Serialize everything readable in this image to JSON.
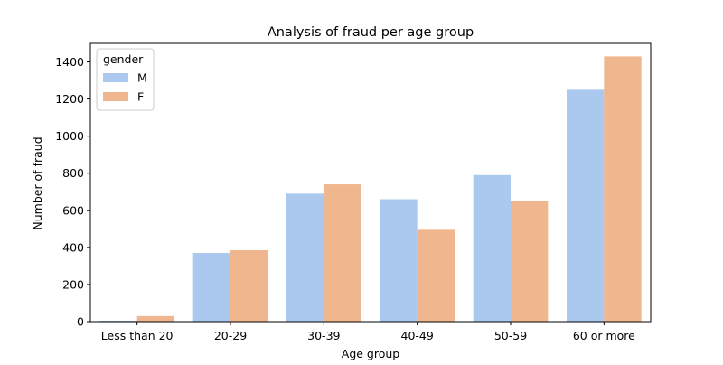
{
  "chart_data": {
    "type": "bar",
    "title": "Analysis of fraud per age group",
    "xlabel": "Age group",
    "ylabel": "Number of fraud",
    "categories": [
      "Less than 20",
      "20-29",
      "30-39",
      "40-49",
      "50-59",
      "60 or more"
    ],
    "series": [
      {
        "name": "M",
        "color": "#abc9ee",
        "values": [
          5,
          370,
          690,
          660,
          790,
          1250
        ]
      },
      {
        "name": "F",
        "color": "#f0b78e",
        "values": [
          30,
          385,
          740,
          495,
          650,
          1430
        ]
      }
    ],
    "ylim": [
      0,
      1500
    ],
    "yticks": [
      0,
      200,
      400,
      600,
      800,
      1000,
      1200,
      1400
    ],
    "grid": false,
    "legend": {
      "title": "gender",
      "placement": "top-left"
    }
  }
}
